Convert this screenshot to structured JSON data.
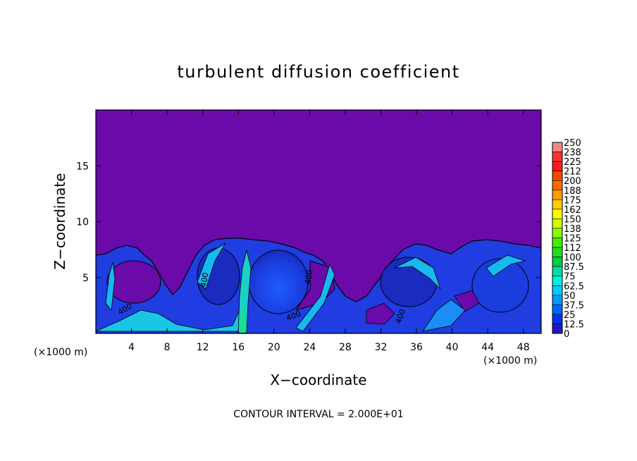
{
  "chart_data": {
    "type": "heatmap",
    "title": "turbulent diffusion coefficient",
    "xlabel": "X−coordinate",
    "ylabel": "Z−coordinate",
    "x_unit_left": "(×1000 m)",
    "x_unit_right": "(×1000 m)",
    "footer": "CONTOUR INTERVAL = 2.000E+01",
    "xlim": [
      0,
      50
    ],
    "ylim": [
      0,
      20
    ],
    "x_ticks": [
      4,
      8,
      12,
      16,
      20,
      24,
      28,
      32,
      36,
      40,
      44,
      48
    ],
    "y_ticks": [
      5,
      10,
      15
    ],
    "colorbar": {
      "min": 0,
      "max": 250,
      "labels": [
        "250",
        "238",
        "225",
        "212",
        "200",
        "188",
        "175",
        "162",
        "150",
        "138",
        "125",
        "112",
        "100",
        "87.5",
        "75",
        "62.5",
        "50",
        "37.5",
        "25",
        "12.5",
        "0"
      ],
      "colors": [
        "#f08a8a",
        "#ff3030",
        "#ff1a1a",
        "#ff4400",
        "#ff6a00",
        "#ff9900",
        "#ffcc00",
        "#ffff00",
        "#ccff00",
        "#88ff00",
        "#44ee00",
        "#22dd22",
        "#00cc44",
        "#00ddaa",
        "#00eedd",
        "#00ccff",
        "#0099ff",
        "#0066ff",
        "#0033ee",
        "#1a1acc",
        "#6a0aa8"
      ]
    },
    "contour_labels": [
      "400",
      "400",
      "400",
      "400",
      "400"
    ],
    "background_value": 0,
    "turbulent_layer_top_approx": 7.5
  }
}
